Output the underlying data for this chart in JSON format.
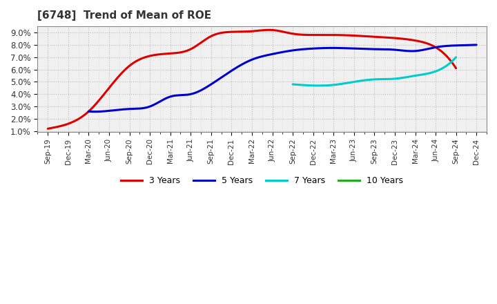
{
  "title": "[6748]  Trend of Mean of ROE",
  "background_color": "#ffffff",
  "grid_color": "#bbbbbb",
  "plot_bg_color": "#f0f0f0",
  "x_labels": [
    "Sep-19",
    "Dec-19",
    "Mar-20",
    "Jun-20",
    "Sep-20",
    "Dec-20",
    "Mar-21",
    "Jun-21",
    "Sep-21",
    "Dec-21",
    "Mar-22",
    "Jun-22",
    "Sep-22",
    "Dec-22",
    "Mar-23",
    "Jun-23",
    "Sep-23",
    "Dec-23",
    "Mar-24",
    "Jun-24",
    "Sep-24",
    "Dec-24"
  ],
  "series": {
    "3 Years": {
      "color": "#dd0000",
      "data": [
        1.2,
        1.6,
        2.6,
        4.5,
        6.3,
        7.1,
        7.3,
        7.65,
        8.7,
        9.05,
        9.1,
        9.2,
        8.9,
        8.8,
        8.8,
        8.75,
        8.65,
        8.55,
        8.35,
        7.8,
        6.1,
        null
      ]
    },
    "5 Years": {
      "color": "#0000cc",
      "data": [
        null,
        null,
        2.6,
        2.65,
        2.8,
        3.0,
        3.8,
        4.0,
        4.8,
        5.9,
        6.8,
        7.25,
        7.55,
        7.7,
        7.75,
        7.7,
        7.65,
        7.6,
        7.5,
        7.8,
        7.95,
        8.0
      ]
    },
    "7 Years": {
      "color": "#00cccc",
      "data": [
        null,
        null,
        null,
        null,
        null,
        null,
        null,
        null,
        null,
        null,
        null,
        null,
        4.8,
        4.7,
        4.75,
        5.0,
        5.2,
        5.25,
        5.5,
        5.85,
        7.0,
        null
      ]
    },
    "10 Years": {
      "color": "#22aa22",
      "data": [
        null,
        null,
        null,
        null,
        null,
        null,
        null,
        null,
        null,
        null,
        null,
        null,
        null,
        null,
        null,
        null,
        null,
        null,
        null,
        null,
        null,
        null
      ]
    }
  },
  "ylim": [
    0.95,
    9.5
  ],
  "yticks": [
    1.0,
    2.0,
    3.0,
    4.0,
    5.0,
    6.0,
    7.0,
    8.0,
    9.0
  ],
  "legend_labels": [
    "3 Years",
    "5 Years",
    "7 Years",
    "10 Years"
  ],
  "legend_colors": [
    "#dd0000",
    "#0000cc",
    "#00cccc",
    "#22aa22"
  ]
}
